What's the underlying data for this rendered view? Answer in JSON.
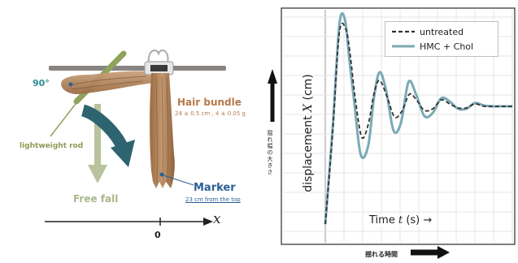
{
  "left_panel": {
    "angle_label": "90°",
    "hair_bundle_label": "Hair bundle",
    "hair_bundle_dims": "24 ± 0.5 cm , 4 ± 0.05 g",
    "rod_label": "lightweight rod",
    "free_fall_label": "Free fall",
    "marker_label": "Marker",
    "marker_note": "23 cm from the top",
    "axis_zero": "0",
    "axis_var": "x"
  },
  "right_panel": {
    "ylabel_text": "displacement ",
    "ylabel_var": "X",
    "ylabel_unit": " (cm)",
    "jp_amplitude": "揺れ幅の大きさ",
    "jp_time": "揺れる時間",
    "time_text": "Time ",
    "time_var": "t",
    "time_unit": " (s) →",
    "colors": {
      "untreated": "#333333",
      "treated": "#7aa9b5"
    }
  },
  "chart_data": {
    "type": "line",
    "title": "",
    "xlabel": "Time t (s)",
    "ylabel": "displacement X (cm)",
    "grid": true,
    "legend_position": "top-right",
    "xlim": [
      0,
      10
    ],
    "ylim": [
      -1.15,
      1.15
    ],
    "series": [
      {
        "name": "untreated",
        "style": "dashed",
        "x": [
          0,
          0.4,
          0.75,
          1.1,
          1.35,
          1.6,
          1.95,
          2.3,
          2.6,
          2.9,
          3.3,
          3.7,
          4.1,
          4.5,
          4.9,
          5.3,
          5.75,
          6.2,
          6.65,
          7.1,
          7.55,
          8.0,
          8.5,
          9.0,
          9.5,
          10.0
        ],
        "y": [
          -1.45,
          -0.3,
          0.9,
          0.95,
          0.6,
          0.1,
          -0.38,
          -0.22,
          0.15,
          0.32,
          0.12,
          -0.13,
          -0.06,
          0.15,
          0.07,
          -0.05,
          -0.03,
          0.08,
          0.03,
          -0.02,
          -0.02,
          0.03,
          0.0,
          0.0,
          0.0,
          0.0
        ]
      },
      {
        "name": "HMC + Chol",
        "style": "solid",
        "x": [
          0,
          0.4,
          0.75,
          1.05,
          1.3,
          1.55,
          1.9,
          2.3,
          2.6,
          2.9,
          3.25,
          3.65,
          4.05,
          4.45,
          4.85,
          5.3,
          5.75,
          6.2,
          6.65,
          7.1,
          7.55,
          8.0,
          8.5,
          9.0,
          9.5,
          10.0
        ],
        "y": [
          -1.45,
          -0.25,
          1.0,
          1.07,
          0.55,
          0.05,
          -0.6,
          -0.48,
          0.1,
          0.42,
          0.2,
          -0.3,
          -0.2,
          0.3,
          0.15,
          -0.12,
          -0.08,
          0.1,
          0.06,
          -0.03,
          -0.03,
          0.04,
          0.01,
          0.0,
          0.0,
          0.0
        ]
      }
    ]
  }
}
